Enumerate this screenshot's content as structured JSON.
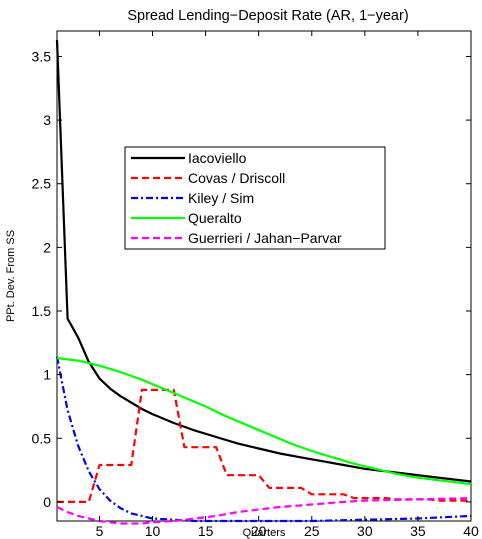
{
  "chart_data": {
    "type": "line",
    "title": "Spread Lending−Deposit Rate (AR, 1−year)",
    "xlabel": "Quarters",
    "ylabel": "PPt. Dev. From SS",
    "xlim": [
      1,
      40
    ],
    "ylim": [
      -0.15,
      3.7
    ],
    "xticks": [
      5,
      10,
      15,
      20,
      25,
      30,
      35,
      40
    ],
    "xtick_labels": [
      "5",
      "10",
      "15",
      "20",
      "25",
      "30",
      "35",
      "40"
    ],
    "yticks": [
      0,
      0.5,
      1,
      1.5,
      2,
      2.5,
      3,
      3.5
    ],
    "ytick_labels": [
      "0",
      "0.5",
      "1",
      "1.5",
      "2",
      "2.5",
      "3",
      "3.5"
    ],
    "grid": false,
    "legend_position": "center",
    "series": [
      {
        "name": "Iacoviello",
        "color": "#000000",
        "dash": "solid",
        "x": [
          1,
          2,
          3,
          4,
          5,
          6,
          7,
          8,
          9,
          10,
          12,
          14,
          16,
          18,
          20,
          22,
          24,
          26,
          28,
          30,
          32,
          34,
          36,
          38,
          40
        ],
        "y": [
          3.63,
          1.44,
          1.29,
          1.1,
          0.97,
          0.89,
          0.83,
          0.78,
          0.73,
          0.69,
          0.62,
          0.56,
          0.51,
          0.46,
          0.42,
          0.38,
          0.35,
          0.32,
          0.29,
          0.26,
          0.24,
          0.22,
          0.2,
          0.18,
          0.16
        ]
      },
      {
        "name": "Covas / Driscoll",
        "color": "#ff0000",
        "dash": "dashed",
        "x": [
          1,
          2,
          3,
          4,
          5,
          6,
          7,
          8,
          9,
          10,
          11,
          12,
          13,
          14,
          15,
          16,
          17,
          18,
          19,
          20,
          21,
          22,
          23,
          24,
          25,
          26,
          27,
          28,
          29,
          30,
          31,
          32,
          33,
          34,
          35,
          36,
          37,
          38,
          39,
          40
        ],
        "y": [
          0.0,
          0.0,
          0.0,
          0.0,
          0.29,
          0.29,
          0.29,
          0.29,
          0.88,
          0.88,
          0.88,
          0.88,
          0.43,
          0.43,
          0.43,
          0.43,
          0.21,
          0.21,
          0.21,
          0.21,
          0.11,
          0.11,
          0.11,
          0.11,
          0.06,
          0.06,
          0.06,
          0.06,
          0.03,
          0.03,
          0.03,
          0.03,
          0.02,
          0.02,
          0.02,
          0.02,
          0.01,
          0.01,
          0.01,
          0.01
        ]
      },
      {
        "name": "Kiley / Sim",
        "color": "#0000ff",
        "dash": "dashdot",
        "x": [
          1,
          2,
          3,
          4,
          5,
          6,
          7,
          8,
          9,
          10,
          12,
          14,
          16,
          18,
          20,
          25,
          30,
          35,
          40
        ],
        "y": [
          1.14,
          0.72,
          0.44,
          0.24,
          0.1,
          0.01,
          -0.05,
          -0.09,
          -0.11,
          -0.13,
          -0.14,
          -0.15,
          -0.15,
          -0.15,
          -0.15,
          -0.15,
          -0.14,
          -0.13,
          -0.11
        ]
      },
      {
        "name": "Queralto",
        "color": "#00ff00",
        "dash": "solid",
        "x": [
          1,
          3,
          5,
          7,
          9,
          11,
          13,
          15,
          17,
          19,
          21,
          23,
          25,
          27,
          29,
          31,
          33,
          35,
          37,
          40
        ],
        "y": [
          1.13,
          1.11,
          1.07,
          1.02,
          0.96,
          0.89,
          0.82,
          0.75,
          0.67,
          0.6,
          0.53,
          0.46,
          0.4,
          0.35,
          0.3,
          0.26,
          0.22,
          0.19,
          0.17,
          0.14
        ]
      },
      {
        "name": "Guerrieri / Jahan−Parvar",
        "color": "#ff00ff",
        "dash": "dashed",
        "x": [
          1,
          2,
          3,
          4,
          5,
          6,
          7,
          8,
          9,
          10,
          12,
          14,
          16,
          18,
          20,
          22,
          25,
          28,
          30,
          35,
          40
        ],
        "y": [
          -0.04,
          -0.08,
          -0.11,
          -0.13,
          -0.15,
          -0.16,
          -0.17,
          -0.17,
          -0.17,
          -0.16,
          -0.15,
          -0.13,
          -0.11,
          -0.08,
          -0.06,
          -0.04,
          -0.02,
          0.0,
          0.01,
          0.02,
          0.03
        ]
      }
    ]
  }
}
